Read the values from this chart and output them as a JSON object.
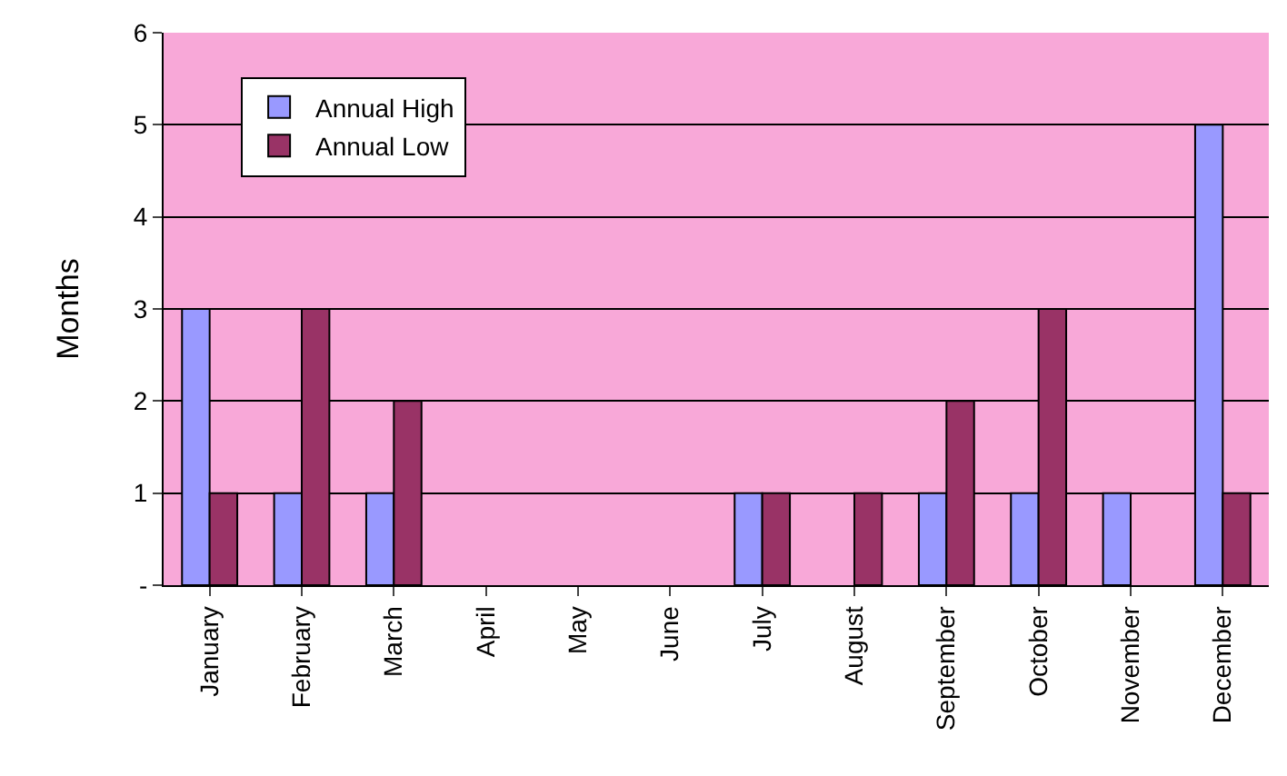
{
  "chart_data": {
    "type": "bar",
    "ylabel": "Months",
    "categories": [
      "January",
      "February",
      "March",
      "April",
      "May",
      "June",
      "July",
      "August",
      "September",
      "October",
      "November",
      "December"
    ],
    "series": [
      {
        "name": "Annual High",
        "color": "#9999ff",
        "values": [
          3,
          1,
          1,
          0,
          0,
          0,
          1,
          0,
          1,
          1,
          1,
          5
        ]
      },
      {
        "name": "Annual Low",
        "color": "#993366",
        "values": [
          1,
          3,
          2,
          0,
          0,
          0,
          1,
          1,
          2,
          3,
          0,
          1
        ]
      }
    ],
    "ylim": [
      0,
      6
    ],
    "yticks": [
      {
        "value": 0,
        "label": "-"
      },
      1,
      2,
      3,
      4,
      5,
      6
    ],
    "grid": "y",
    "legend": "top left"
  }
}
